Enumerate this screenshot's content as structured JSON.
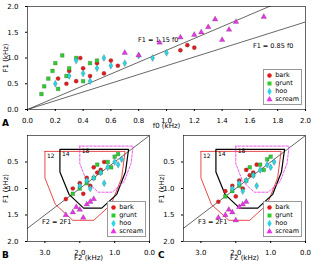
{
  "chart_data": [
    {
      "type": "scatter",
      "title": "A",
      "x_label": "f0 (kHz)",
      "y_label": "F1 (kHz)",
      "xlim": [
        0,
        2
      ],
      "ylim": [
        0,
        2
      ],
      "xticks": [
        0,
        0.2,
        0.4,
        0.6,
        0.8,
        1,
        1.2,
        1.4,
        1.6,
        1.8,
        2
      ],
      "yticks": [
        0,
        0.5,
        1,
        1.5,
        2
      ],
      "grid": false,
      "legend": "bottom-right",
      "series": [
        {
          "name": "bark",
          "color": "#e41a1c",
          "marker": "circle",
          "x": [
            0.22,
            0.3,
            0.35,
            0.4,
            0.45,
            0.5,
            0.55,
            0.6,
            0.38,
            0.28,
            1.1,
            1.15,
            1.2,
            0.65
          ],
          "values": [
            0.6,
            0.75,
            0.55,
            0.8,
            0.65,
            0.9,
            0.7,
            0.95,
            1.0,
            0.5,
            1.15,
            1.25,
            1.2,
            0.85
          ]
        },
        {
          "name": "grunt",
          "color": "#2ecc2e",
          "marker": "square",
          "x": [
            0.1,
            0.15,
            0.2,
            0.25,
            0.3,
            0.12,
            0.18,
            0.35,
            0.45,
            0.4,
            0.22,
            0.28,
            0.5
          ],
          "values": [
            0.3,
            0.6,
            0.9,
            1.05,
            0.8,
            0.45,
            0.75,
            1.0,
            0.9,
            0.55,
            0.4,
            0.65,
            0.95
          ]
        },
        {
          "name": "hoo",
          "color": "#29d6e8",
          "marker": "diamond",
          "x": [
            0.2,
            0.3,
            0.4,
            0.5,
            0.6,
            0.7,
            0.8,
            0.35,
            0.55,
            0.9,
            1.0,
            0.45
          ],
          "values": [
            0.5,
            0.65,
            0.7,
            0.8,
            0.85,
            0.9,
            1.05,
            0.95,
            1.0,
            1.0,
            1.1,
            0.55
          ]
        },
        {
          "name": "scream",
          "color": "#e833e8",
          "marker": "triangle",
          "x": [
            0.8,
            0.95,
            1.1,
            1.25,
            1.3,
            1.4,
            1.45,
            1.5,
            1.35,
            1.7,
            0.7,
            1.2
          ],
          "values": [
            1.05,
            1.3,
            1.4,
            1.5,
            1.6,
            1.35,
            1.55,
            1.7,
            1.75,
            1.8,
            1.1,
            1.45
          ]
        }
      ],
      "annotations": [
        {
          "text": "F1 = 1.15 f0",
          "color": "#000000",
          "x": [
            0,
            2
          ],
          "values": [
            0,
            2.3
          ]
        },
        {
          "text": "F1 = 0.85 f0",
          "color": "#000000",
          "x": [
            0,
            2
          ],
          "values": [
            0,
            1.7
          ]
        }
      ]
    },
    {
      "type": "scatter",
      "title": "B",
      "x_label": "F2 (kHz)",
      "y_label": "F1 (kHz)",
      "xlim": [
        3.5,
        0
      ],
      "ylim": [
        2,
        0
      ],
      "xticks": [
        3,
        2,
        1,
        0
      ],
      "yticks": [
        0.5,
        1,
        1.5,
        2
      ],
      "grid": false,
      "legend": "bottom-right",
      "series": [
        {
          "name": "12",
          "type": "line",
          "color": "#e41a1c",
          "line_style": "solid",
          "x": [
            3.0,
            3.0,
            2.7,
            2.2,
            1.6,
            1.1,
            0.8,
            0.7,
            3.0
          ],
          "values": [
            0.3,
            0.8,
            1.3,
            1.6,
            1.6,
            1.3,
            0.8,
            0.3,
            0.3
          ]
        },
        {
          "name": "14",
          "type": "line",
          "color": "#000000",
          "line_style": "solid",
          "x": [
            2.57,
            2.57,
            2.31,
            1.89,
            1.37,
            0.94,
            0.69,
            0.6,
            2.57
          ],
          "values": [
            0.26,
            0.69,
            1.11,
            1.37,
            1.37,
            1.11,
            0.69,
            0.26,
            0.26
          ]
        },
        {
          "name": "18",
          "type": "line",
          "color": "#e833e8",
          "line_style": "dashed",
          "x": [
            2.0,
            2.0,
            1.8,
            1.47,
            1.07,
            0.73,
            0.53,
            0.47,
            2.0
          ],
          "values": [
            0.2,
            0.53,
            0.87,
            1.07,
            1.07,
            0.87,
            0.53,
            0.2,
            0.2
          ]
        },
        {
          "name": "bark",
          "type": "scatter",
          "color": "#e41a1c",
          "marker": "circle",
          "x": [
            1.6,
            1.8,
            2.0,
            1.5,
            1.3,
            2.2,
            1.7,
            1.9,
            1.4,
            2.4
          ],
          "values": [
            0.6,
            0.8,
            0.9,
            0.7,
            0.5,
            1.0,
            0.95,
            1.1,
            0.65,
            1.2
          ]
        },
        {
          "name": "grunt",
          "type": "scatter",
          "color": "#2ecc2e",
          "marker": "square",
          "x": [
            1.0,
            1.2,
            1.4,
            1.6,
            0.9,
            1.8,
            2.0,
            1.1,
            1.5,
            2.2
          ],
          "values": [
            0.4,
            0.5,
            0.7,
            0.8,
            0.35,
            0.9,
            1.0,
            0.6,
            0.55,
            1.1
          ]
        },
        {
          "name": "hoo",
          "type": "scatter",
          "color": "#29d6e8",
          "marker": "diamond",
          "x": [
            0.8,
            1.0,
            1.2,
            1.4,
            1.6,
            1.8,
            0.9,
            1.3,
            1.7,
            2.0
          ],
          "values": [
            0.45,
            0.5,
            0.6,
            0.7,
            0.8,
            0.85,
            0.55,
            0.9,
            1.0,
            0.95
          ]
        },
        {
          "name": "scream",
          "type": "scatter",
          "color": "#e833e8",
          "marker": "triangle",
          "x": [
            1.6,
            1.8,
            2.0,
            2.2,
            2.4,
            1.9,
            2.1,
            1.7
          ],
          "values": [
            1.2,
            1.3,
            1.4,
            1.45,
            1.5,
            1.55,
            1.35,
            1.25
          ]
        }
      ],
      "annotations": [
        {
          "text": "F2 = 2F1",
          "color": "#000000",
          "x": [
            0,
            4
          ],
          "values": [
            0,
            2
          ]
        }
      ]
    },
    {
      "type": "scatter",
      "title": "C",
      "x_label": "F2 (kHz)",
      "y_label": "F1 (kHz)",
      "xlim": [
        3.5,
        0
      ],
      "ylim": [
        2,
        0
      ],
      "xticks": [
        3,
        2,
        1,
        0
      ],
      "yticks": [
        0.5,
        1,
        1.5,
        2
      ],
      "grid": false,
      "legend": "bottom-right",
      "series": [
        {
          "name": "12",
          "type": "line",
          "color": "#e41a1c",
          "line_style": "solid",
          "x": [
            3.0,
            3.0,
            2.7,
            2.2,
            1.6,
            1.1,
            0.8,
            0.7,
            3.0
          ],
          "values": [
            0.3,
            0.8,
            1.3,
            1.6,
            1.6,
            1.3,
            0.8,
            0.3,
            0.3
          ]
        },
        {
          "name": "14",
          "type": "line",
          "color": "#000000",
          "line_style": "solid",
          "x": [
            2.57,
            2.57,
            2.31,
            1.89,
            1.37,
            0.94,
            0.69,
            0.6,
            2.57
          ],
          "values": [
            0.26,
            0.69,
            1.11,
            1.37,
            1.37,
            1.11,
            0.69,
            0.26,
            0.26
          ]
        },
        {
          "name": "18",
          "type": "line",
          "color": "#e833e8",
          "line_style": "dashed",
          "x": [
            2.0,
            2.0,
            1.8,
            1.47,
            1.07,
            0.73,
            0.53,
            0.47,
            2.0
          ],
          "values": [
            0.2,
            0.53,
            0.87,
            1.07,
            1.07,
            0.87,
            0.53,
            0.2,
            0.2
          ]
        },
        {
          "name": "bark",
          "type": "scatter",
          "color": "#e41a1c",
          "marker": "circle",
          "x": [
            1.7,
            1.9,
            2.1,
            1.6,
            1.4,
            2.3,
            1.8,
            2.0,
            1.5,
            2.5
          ],
          "values": [
            0.65,
            0.85,
            0.95,
            0.75,
            0.55,
            1.05,
            1.0,
            1.15,
            0.7,
            1.25
          ]
        },
        {
          "name": "grunt",
          "type": "scatter",
          "color": "#2ecc2e",
          "marker": "square",
          "x": [
            1.1,
            1.3,
            1.5,
            1.7,
            1.0,
            1.9,
            2.1,
            1.2,
            1.6,
            2.3
          ],
          "values": [
            0.45,
            0.55,
            0.75,
            0.85,
            0.4,
            0.95,
            1.05,
            0.65,
            0.6,
            1.15
          ]
        },
        {
          "name": "hoo",
          "type": "scatter",
          "color": "#29d6e8",
          "marker": "diamond",
          "x": [
            0.9,
            1.1,
            1.3,
            1.5,
            1.7,
            1.9,
            1.0,
            1.4,
            1.8,
            2.1
          ],
          "values": [
            0.5,
            0.55,
            0.65,
            0.75,
            0.85,
            0.9,
            0.6,
            0.95,
            1.05,
            1.0
          ]
        },
        {
          "name": "scream",
          "type": "scatter",
          "color": "#e833e8",
          "marker": "triangle",
          "x": [
            1.7,
            1.9,
            2.1,
            2.3,
            2.5,
            2.0,
            2.2,
            1.8
          ],
          "values": [
            1.25,
            1.35,
            1.45,
            1.5,
            1.55,
            1.6,
            1.4,
            1.3
          ]
        }
      ],
      "annotations": [
        {
          "text": "F3 = 2F1",
          "color": "#000000",
          "x": [
            0,
            4
          ],
          "values": [
            0,
            2
          ]
        }
      ]
    }
  ]
}
